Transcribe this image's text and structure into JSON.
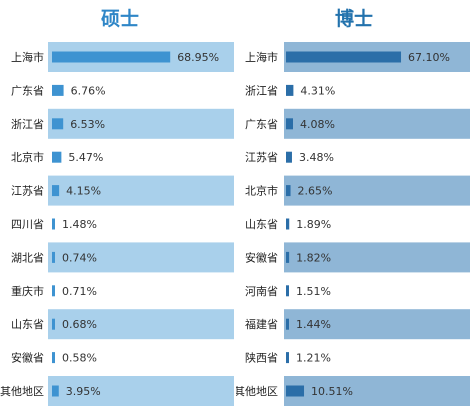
{
  "colors": {
    "left_title": "#2f86c7",
    "left_bar": "#3e93d1",
    "left_band": "#a9d0eb",
    "right_title": "#2272ad",
    "right_bar": "#2b6ea8",
    "right_band": "#8fb6d6"
  },
  "chart_data": [
    {
      "type": "bar",
      "orientation": "horizontal",
      "title": "硕士",
      "unit": "%",
      "categories": [
        "上海市",
        "广东省",
        "浙江省",
        "北京市",
        "江苏省",
        "四川省",
        "湖北省",
        "重庆市",
        "山东省",
        "安徽省",
        "其他地区"
      ],
      "values": [
        68.95,
        6.76,
        6.53,
        5.47,
        4.15,
        1.48,
        0.74,
        0.71,
        0.68,
        0.58,
        3.95
      ],
      "value_labels": [
        "68.95%",
        "6.76%",
        "6.53%",
        "5.47%",
        "4.15%",
        "1.48%",
        "0.74%",
        "0.71%",
        "0.68%",
        "0.58%",
        "3.95%"
      ],
      "band_rows": [
        true,
        false,
        true,
        false,
        true,
        false,
        true,
        false,
        true,
        false,
        true
      ]
    },
    {
      "type": "bar",
      "orientation": "horizontal",
      "title": "博士",
      "unit": "%",
      "categories": [
        "上海市",
        "浙江省",
        "广东省",
        "江苏省",
        "北京市",
        "山东省",
        "安徽省",
        "河南省",
        "福建省",
        "陕西省",
        "其他地区"
      ],
      "values": [
        67.1,
        4.31,
        4.08,
        3.48,
        2.65,
        1.89,
        1.82,
        1.51,
        1.44,
        1.21,
        10.51
      ],
      "value_labels": [
        "67.10%",
        "4.31%",
        "4.08%",
        "3.48%",
        "2.65%",
        "1.89%",
        "1.82%",
        "1.51%",
        "1.44%",
        "1.21%",
        "10.51%"
      ],
      "band_rows": [
        true,
        false,
        true,
        false,
        true,
        false,
        true,
        false,
        true,
        false,
        true
      ]
    }
  ]
}
